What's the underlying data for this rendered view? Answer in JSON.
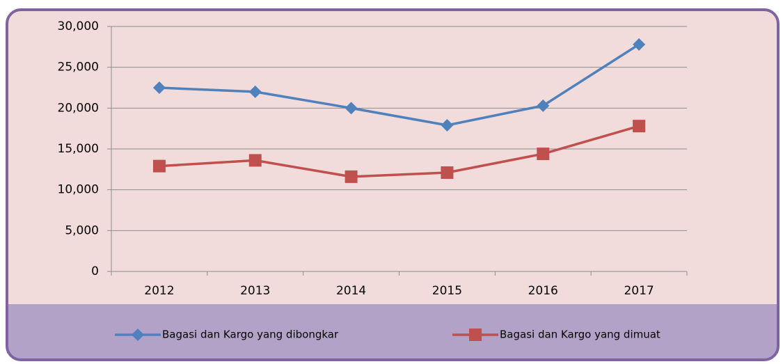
{
  "chart_data": {
    "type": "line",
    "categories": [
      "2012",
      "2013",
      "2014",
      "2015",
      "2016",
      "2017"
    ],
    "series": [
      {
        "name": "Bagasi dan Kargo yang dibongkar",
        "color": "#4f81bd",
        "marker": "diamond",
        "values": [
          22500,
          22000,
          20000,
          17900,
          20300,
          27800
        ]
      },
      {
        "name": "Bagasi dan Kargo yang dimuat",
        "color": "#c0504d",
        "marker": "square",
        "values": [
          12900,
          13600,
          11600,
          12100,
          14400,
          17800
        ]
      }
    ],
    "ylim": [
      0,
      30000
    ],
    "yticks": [
      {
        "value": 0,
        "label": "0"
      },
      {
        "value": 5000,
        "label": "5,000"
      },
      {
        "value": 10000,
        "label": "10,000"
      },
      {
        "value": 15000,
        "label": "15,000"
      },
      {
        "value": 20000,
        "label": "20,000"
      },
      {
        "value": 25000,
        "label": "25,000"
      },
      {
        "value": 30000,
        "label": "30,000"
      }
    ],
    "grid": true,
    "legend": "bottom"
  }
}
